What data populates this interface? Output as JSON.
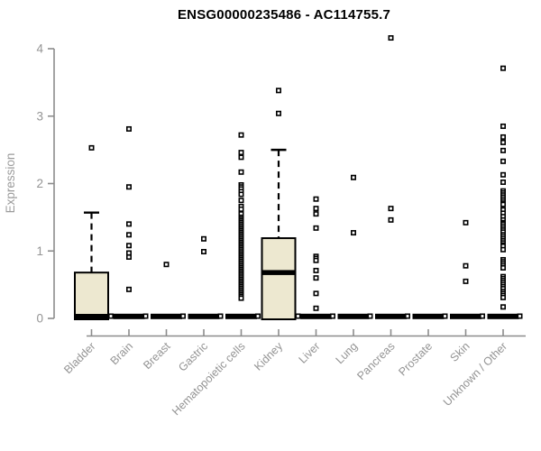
{
  "chart_data": {
    "type": "box",
    "title": "ENSG00000235486 - AC114755.7",
    "xlabel": "",
    "ylabel": "Expression",
    "ylim": [
      0,
      4.2
    ],
    "y_ticks": [
      0,
      1,
      2,
      3,
      4
    ],
    "grid": false,
    "legend": "none",
    "colors": {
      "box_fill": "#ede8d0",
      "box_stroke": "#000000",
      "median": "#000000",
      "axis": "#8c8c8c",
      "tick_text": "#949494",
      "axis_title_text": "#9b9b9b",
      "title_text": "#000000",
      "outlier_fill": "#ffffff",
      "outlier_stroke": "#000000"
    },
    "categories": [
      "Bladder",
      "Brain",
      "Breast",
      "Gastric",
      "Hematopoietic cells",
      "Kidney",
      "Liver",
      "Lung",
      "Pancreas",
      "Prostate",
      "Skin",
      "Unknown / Other"
    ],
    "series": [
      {
        "category": "Bladder",
        "q1": 0,
        "median": 0,
        "q3": 0.68,
        "whisker_low": 0,
        "whisker_high": 1.57,
        "outliers": [
          2.53
        ]
      },
      {
        "category": "Brain",
        "q1": 0,
        "median": 0,
        "q3": 0,
        "whisker_low": 0,
        "whisker_high": 0,
        "outliers": [
          2.81,
          1.95,
          1.4,
          1.24,
          1.08,
          0.97,
          0.91,
          0.43
        ]
      },
      {
        "category": "Breast",
        "q1": 0,
        "median": 0,
        "q3": 0,
        "whisker_low": 0,
        "whisker_high": 0,
        "outliers": [
          0.8
        ]
      },
      {
        "category": "Gastric",
        "q1": 0,
        "median": 0,
        "q3": 0,
        "whisker_low": 0,
        "whisker_high": 0,
        "outliers": [
          1.18,
          0.99
        ]
      },
      {
        "category": "Hematopoietic cells",
        "q1": 0,
        "median": 0,
        "q3": 0,
        "whisker_low": 0,
        "whisker_high": 0,
        "outliers": [
          2.72,
          2.46,
          2.39,
          2.17,
          1.98,
          1.95,
          1.92,
          1.88,
          1.84,
          1.75,
          1.66,
          1.62,
          1.55,
          1.5,
          1.475,
          1.45,
          1.425,
          1.4,
          1.375,
          1.35,
          1.325,
          1.3,
          1.275,
          1.25,
          1.225,
          1.2,
          1.175,
          1.15,
          1.125,
          1.1,
          1.075,
          1.05,
          1.025,
          1.0,
          0.975,
          0.95,
          0.925,
          0.9,
          0.875,
          0.85,
          0.825,
          0.8,
          0.775,
          0.75,
          0.725,
          0.7,
          0.675,
          0.65,
          0.625,
          0.6,
          0.575,
          0.55,
          0.525,
          0.5,
          0.475,
          0.45,
          0.425,
          0.4,
          0.375,
          0.35,
          0.325,
          0.3
        ]
      },
      {
        "category": "Kidney",
        "q1": 0,
        "median": 0.68,
        "q3": 1.19,
        "whisker_low": 0,
        "whisker_high": 2.5,
        "outliers": [
          3.38,
          3.04
        ]
      },
      {
        "category": "Liver",
        "q1": 0,
        "median": 0,
        "q3": 0,
        "whisker_low": 0,
        "whisker_high": 0,
        "outliers": [
          1.77,
          1.63,
          1.55,
          1.34,
          0.92,
          0.89,
          0.86,
          0.71,
          0.6,
          0.37,
          0.15
        ]
      },
      {
        "category": "Lung",
        "q1": 0,
        "median": 0,
        "q3": 0,
        "whisker_low": 0,
        "whisker_high": 0,
        "outliers": [
          2.09,
          1.27
        ]
      },
      {
        "category": "Pancreas",
        "q1": 0,
        "median": 0,
        "q3": 0,
        "whisker_low": 0,
        "whisker_high": 0,
        "outliers": [
          4.16,
          1.63,
          1.46
        ]
      },
      {
        "category": "Prostate",
        "q1": 0,
        "median": 0,
        "q3": 0,
        "whisker_low": 0,
        "whisker_high": 0,
        "outliers": []
      },
      {
        "category": "Skin",
        "q1": 0,
        "median": 0,
        "q3": 0,
        "whisker_low": 0,
        "whisker_high": 0,
        "outliers": [
          1.42,
          0.78,
          0.55
        ]
      },
      {
        "category": "Unknown / Other",
        "q1": 0,
        "median": 0,
        "q3": 0,
        "whisker_low": 0,
        "whisker_high": 0,
        "outliers": [
          3.71,
          2.85,
          2.69,
          2.61,
          2.49,
          2.33,
          2.13,
          2.02,
          1.89,
          1.86,
          1.83,
          1.8,
          1.77,
          1.74,
          1.71,
          1.69,
          1.61,
          1.56,
          1.51,
          1.46,
          1.42,
          1.4,
          1.37,
          1.34,
          1.31,
          1.28,
          1.24,
          1.21,
          1.18,
          1.15,
          1.12,
          1.09,
          1.07,
          1.02,
          0.87,
          0.84,
          0.81,
          0.78,
          0.75,
          0.62,
          0.59,
          0.56,
          0.53,
          0.5,
          0.47,
          0.44,
          0.4,
          0.37,
          0.34,
          0.31,
          0.17
        ]
      }
    ]
  }
}
